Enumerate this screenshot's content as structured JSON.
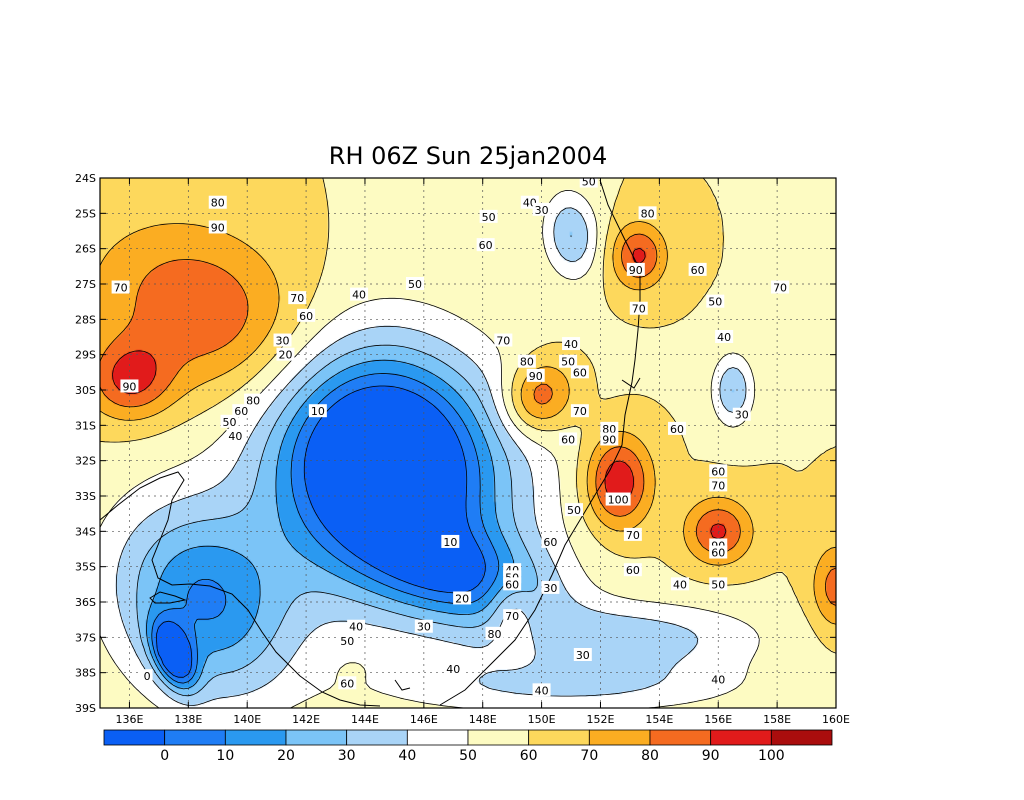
{
  "chart_data": {
    "type": "heatmap",
    "title": "RH 06Z Sun 25jan2004",
    "variable": "RH",
    "x_range": [
      135,
      160
    ],
    "y_range": [
      -39,
      -24
    ],
    "x_ticks": [
      "136E",
      "138E",
      "140E",
      "142E",
      "144E",
      "146E",
      "148E",
      "150E",
      "152E",
      "154E",
      "156E",
      "158E",
      "160E"
    ],
    "x_tick_values": [
      136,
      138,
      140,
      142,
      144,
      146,
      148,
      150,
      152,
      154,
      156,
      158,
      160
    ],
    "y_ticks": [
      "24S",
      "25S",
      "26S",
      "27S",
      "28S",
      "29S",
      "30S",
      "31S",
      "32S",
      "33S",
      "34S",
      "35S",
      "36S",
      "37S",
      "38S",
      "39S"
    ],
    "y_tick_values": [
      -24,
      -25,
      -26,
      -27,
      -28,
      -29,
      -30,
      -31,
      -32,
      -33,
      -34,
      -35,
      -36,
      -37,
      -38,
      -39
    ],
    "grid": true,
    "grid_style": "dotted",
    "background_value": 60,
    "levels": [
      0,
      10,
      20,
      30,
      40,
      50,
      60,
      70,
      80,
      90,
      100
    ],
    "colorbar": {
      "placement": "bottom",
      "labels": [
        "0",
        "10",
        "20",
        "30",
        "40",
        "50",
        "60",
        "70",
        "80",
        "90",
        "100"
      ],
      "colors": [
        "#0a5ff5",
        "#1f7df5",
        "#2a99f0",
        "#7bc4f7",
        "#a9d4f7",
        "#ffffff",
        "#fdfbc2",
        "#fdd85c",
        "#fbad22",
        "#f56b20",
        "#e11b1b",
        "#aa0d0d"
      ]
    },
    "features": [
      {
        "name": "dry-core",
        "lon": 145.0,
        "lat": -32.5,
        "value": 10,
        "rx": 4.5,
        "ry": 3.6,
        "rot": -15
      },
      {
        "name": "dry-inner-core",
        "lon": 144.5,
        "lat": -32.0,
        "value": 5,
        "rx": 3.2,
        "ry": 2.8,
        "rot": -10
      },
      {
        "name": "dry-sw",
        "lon": 138.5,
        "lat": -36.0,
        "value": 10,
        "rx": 3.2,
        "ry": 2.6,
        "rot": -30
      },
      {
        "name": "dry-sw-min",
        "lon": 137.5,
        "lat": -37.5,
        "value": 0,
        "rx": 0.6,
        "ry": 1.0,
        "rot": 30
      },
      {
        "name": "dry-tongue-s",
        "lon": 147.5,
        "lat": -35.3,
        "value": 20,
        "rx": 3.0,
        "ry": 1.3,
        "rot": -10
      },
      {
        "name": "dry-n",
        "lon": 151.0,
        "lat": -25.6,
        "value": 30,
        "rx": 0.9,
        "ry": 1.2,
        "rot": 10
      },
      {
        "name": "dry-e",
        "lon": 156.5,
        "lat": -30.0,
        "value": 30,
        "rx": 0.7,
        "ry": 1.0,
        "rot": 0
      },
      {
        "name": "dry-se",
        "lon": 153.0,
        "lat": -37.0,
        "value": 35,
        "rx": 4.5,
        "ry": 1.0,
        "rot": 0
      },
      {
        "name": "dry-s",
        "lon": 151.0,
        "lat": -38.4,
        "value": 40,
        "rx": 6.0,
        "ry": 0.8,
        "rot": 0
      },
      {
        "name": "moist-nw",
        "lon": 138.5,
        "lat": -27.8,
        "value": 90,
        "rx": 3.6,
        "ry": 2.3,
        "rot": -15
      },
      {
        "name": "moist-w",
        "lon": 136.0,
        "lat": -29.7,
        "value": 90,
        "rx": 1.4,
        "ry": 1.1,
        "rot": 0
      },
      {
        "name": "moist-c",
        "lon": 149.9,
        "lat": -30.2,
        "value": 92,
        "rx": 1.2,
        "ry": 1.0,
        "rot": 20
      },
      {
        "name": "moist-ne",
        "lon": 153.3,
        "lat": -26.2,
        "value": 92,
        "rx": 0.9,
        "ry": 0.9,
        "rot": 0
      },
      {
        "name": "moist-e",
        "lon": 152.6,
        "lat": -32.6,
        "value": 100,
        "rx": 1.1,
        "ry": 1.3,
        "rot": 0
      },
      {
        "name": "moist-se",
        "lon": 156.0,
        "lat": -34.0,
        "value": 92,
        "rx": 1.1,
        "ry": 0.9,
        "rot": 0
      },
      {
        "name": "moist-s",
        "lon": 149.0,
        "lat": -36.3,
        "value": 80,
        "rx": 0.8,
        "ry": 1.1,
        "rot": 20
      },
      {
        "name": "moist-far-e",
        "lon": 160.0,
        "lat": -35.6,
        "value": 85,
        "rx": 0.8,
        "ry": 1.2,
        "rot": 0
      },
      {
        "name": "moist-s-dot",
        "lon": 143.5,
        "lat": -38.0,
        "value": 62,
        "rx": 0.6,
        "ry": 0.4,
        "rot": 0
      }
    ],
    "contour_labels": [
      {
        "text": "80",
        "lon": 139.0,
        "lat": -24.7
      },
      {
        "text": "90",
        "lon": 139.0,
        "lat": -25.4
      },
      {
        "text": "70",
        "lon": 135.7,
        "lat": -27.1
      },
      {
        "text": "70",
        "lon": 141.7,
        "lat": -27.4
      },
      {
        "text": "60",
        "lon": 142.0,
        "lat": -27.9
      },
      {
        "text": "40",
        "lon": 143.8,
        "lat": -27.3
      },
      {
        "text": "50",
        "lon": 145.7,
        "lat": -27.0
      },
      {
        "text": "30",
        "lon": 141.2,
        "lat": -28.6
      },
      {
        "text": "20",
        "lon": 141.3,
        "lat": -29.0
      },
      {
        "text": "90",
        "lon": 136.0,
        "lat": -29.9
      },
      {
        "text": "80",
        "lon": 140.2,
        "lat": -30.3
      },
      {
        "text": "60",
        "lon": 139.8,
        "lat": -30.6
      },
      {
        "text": "50",
        "lon": 139.4,
        "lat": -30.9
      },
      {
        "text": "40",
        "lon": 139.6,
        "lat": -31.3
      },
      {
        "text": "10",
        "lon": 142.4,
        "lat": -30.6
      },
      {
        "text": "50",
        "lon": 148.2,
        "lat": -25.1
      },
      {
        "text": "40",
        "lon": 149.6,
        "lat": -24.7
      },
      {
        "text": "30",
        "lon": 150.0,
        "lat": -24.9
      },
      {
        "text": "60",
        "lon": 148.1,
        "lat": -25.9
      },
      {
        "text": "50",
        "lon": 151.6,
        "lat": -24.1
      },
      {
        "text": "80",
        "lon": 153.6,
        "lat": -25.0
      },
      {
        "text": "90",
        "lon": 153.2,
        "lat": -26.6
      },
      {
        "text": "60",
        "lon": 155.3,
        "lat": -26.6
      },
      {
        "text": "70",
        "lon": 158.1,
        "lat": -27.1
      },
      {
        "text": "70",
        "lon": 153.3,
        "lat": -27.7
      },
      {
        "text": "50",
        "lon": 155.9,
        "lat": -27.5
      },
      {
        "text": "40",
        "lon": 156.2,
        "lat": -28.5
      },
      {
        "text": "70",
        "lon": 148.7,
        "lat": -28.6
      },
      {
        "text": "80",
        "lon": 149.5,
        "lat": -29.2
      },
      {
        "text": "90",
        "lon": 149.8,
        "lat": -29.6
      },
      {
        "text": "40",
        "lon": 151.0,
        "lat": -28.7
      },
      {
        "text": "50",
        "lon": 150.9,
        "lat": -29.2
      },
      {
        "text": "60",
        "lon": 151.3,
        "lat": -29.5
      },
      {
        "text": "70",
        "lon": 151.3,
        "lat": -30.6
      },
      {
        "text": "60",
        "lon": 150.9,
        "lat": -31.4
      },
      {
        "text": "30",
        "lon": 156.8,
        "lat": -30.7
      },
      {
        "text": "60",
        "lon": 154.6,
        "lat": -31.1
      },
      {
        "text": "80",
        "lon": 152.3,
        "lat": -31.1
      },
      {
        "text": "90",
        "lon": 152.3,
        "lat": -31.4
      },
      {
        "text": "100",
        "lon": 152.6,
        "lat": -33.1
      },
      {
        "text": "50",
        "lon": 151.1,
        "lat": -33.4
      },
      {
        "text": "70",
        "lon": 153.1,
        "lat": -34.1
      },
      {
        "text": "60",
        "lon": 156.0,
        "lat": -32.3
      },
      {
        "text": "70",
        "lon": 156.0,
        "lat": -32.7
      },
      {
        "text": "90",
        "lon": 156.0,
        "lat": -34.4
      },
      {
        "text": "60",
        "lon": 156.0,
        "lat": -34.6
      },
      {
        "text": "60",
        "lon": 150.3,
        "lat": -34.3
      },
      {
        "text": "60",
        "lon": 153.1,
        "lat": -35.1
      },
      {
        "text": "40",
        "lon": 154.7,
        "lat": -35.5
      },
      {
        "text": "50",
        "lon": 156.0,
        "lat": -35.5
      },
      {
        "text": "10",
        "lon": 146.9,
        "lat": -34.3
      },
      {
        "text": "20",
        "lon": 147.3,
        "lat": -35.9
      },
      {
        "text": "30",
        "lon": 150.3,
        "lat": -35.6
      },
      {
        "text": "30",
        "lon": 146.0,
        "lat": -36.7
      },
      {
        "text": "40",
        "lon": 143.7,
        "lat": -36.7
      },
      {
        "text": "50",
        "lon": 143.4,
        "lat": -37.1
      },
      {
        "text": "40",
        "lon": 149.0,
        "lat": -35.1
      },
      {
        "text": "50",
        "lon": 149.0,
        "lat": -35.3
      },
      {
        "text": "60",
        "lon": 149.0,
        "lat": -35.5
      },
      {
        "text": "70",
        "lon": 149.0,
        "lat": -36.4
      },
      {
        "text": "80",
        "lon": 148.4,
        "lat": -36.9
      },
      {
        "text": "30",
        "lon": 151.4,
        "lat": -37.5
      },
      {
        "text": "40",
        "lon": 147.0,
        "lat": -37.9
      },
      {
        "text": "60",
        "lon": 143.4,
        "lat": -38.3
      },
      {
        "text": "0",
        "lon": 136.6,
        "lat": -38.1
      },
      {
        "text": "40",
        "lon": 150.0,
        "lat": -38.5
      },
      {
        "text": "40",
        "lon": 156.0,
        "lat": -38.2
      }
    ]
  }
}
